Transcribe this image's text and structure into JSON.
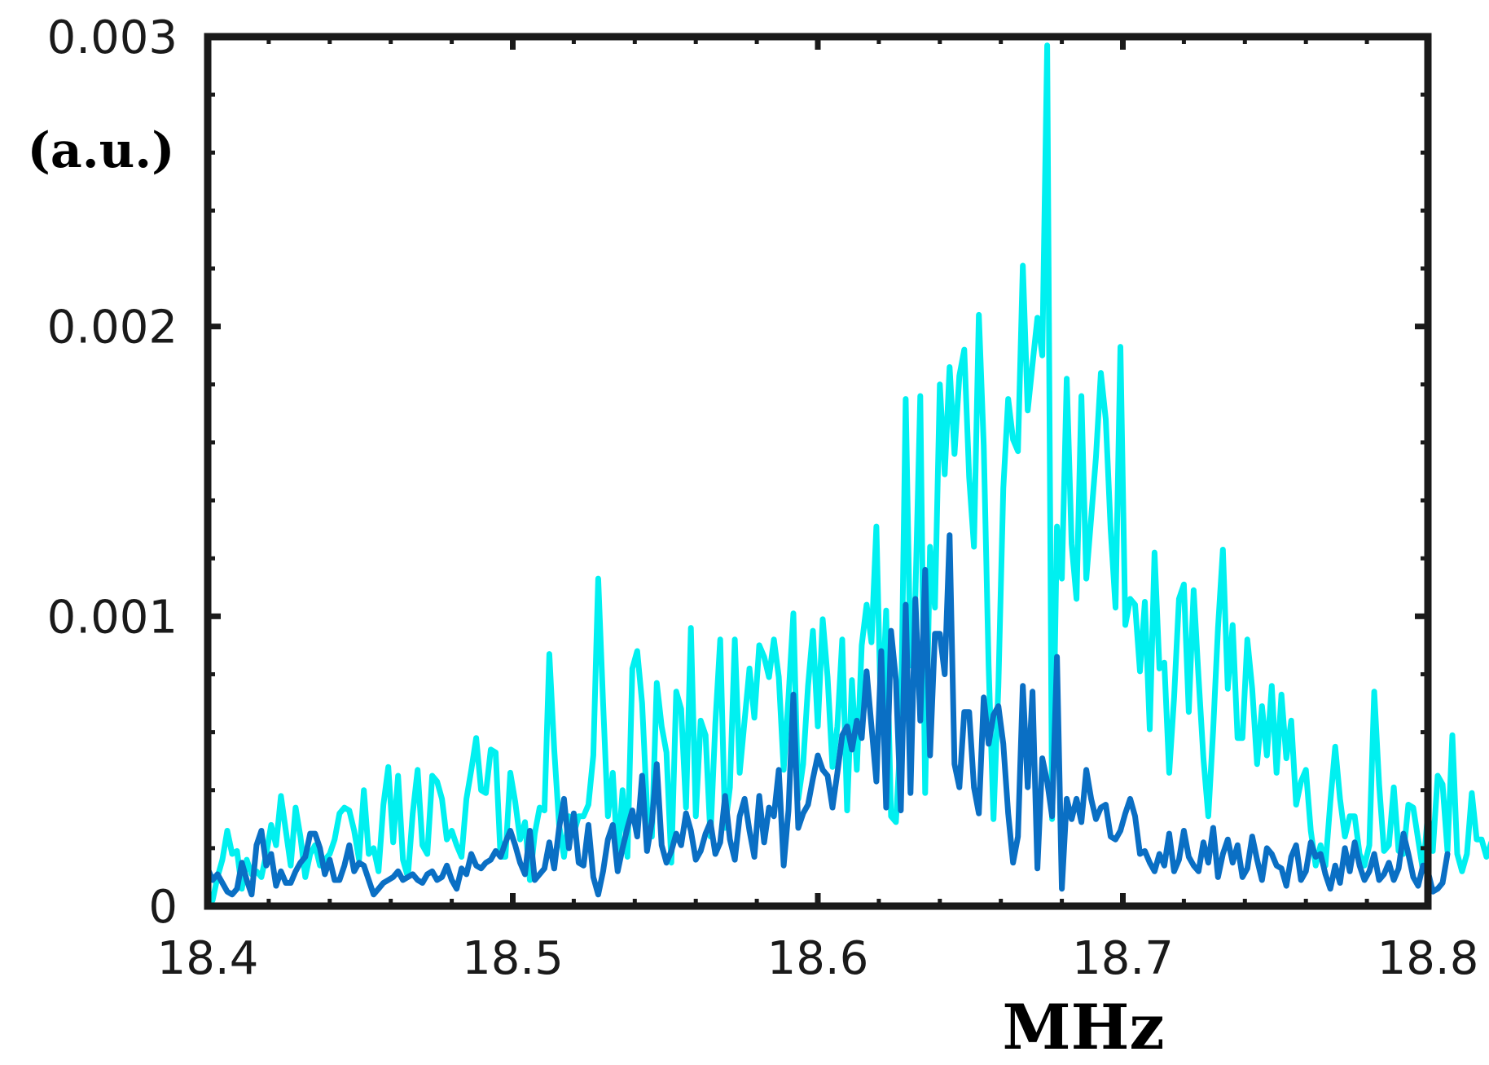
{
  "chart_data": {
    "type": "line",
    "title": "",
    "xlabel": "MHz",
    "ylabel": "(a.u.)",
    "xlim": [
      18.4,
      18.8
    ],
    "ylim": [
      0,
      0.003
    ],
    "xticks": [
      18.4,
      18.5,
      18.6,
      18.7,
      18.8
    ],
    "xtick_labels": [
      "18.4",
      "18.5",
      "18.6",
      "18.7",
      "18.8"
    ],
    "yticks": [
      0,
      0.001,
      0.002,
      0.003
    ],
    "ytick_labels": [
      "0",
      "0.001",
      "0.002",
      "0.003"
    ],
    "grid": false,
    "legend": "none",
    "x": {
      "start": 18.4,
      "step": 0.0016,
      "count": 251
    },
    "series": [
      {
        "color": "#00f0f0",
        "values": [
          5e-05,
          2e-05,
          0.0001,
          0.00016,
          0.00026,
          0.00018,
          0.00019,
          6e-05,
          0.00016,
          0.00011,
          0.00012,
          0.0001,
          0.00018,
          0.00028,
          0.00021,
          0.00038,
          0.00026,
          0.00014,
          0.00034,
          0.00024,
          0.0001,
          0.00018,
          0.00021,
          0.00014,
          0.00016,
          0.00018,
          0.00023,
          0.00032,
          0.00034,
          0.00033,
          0.00026,
          0.00016,
          0.0004,
          0.00018,
          0.0002,
          0.00012,
          0.00035,
          0.00048,
          0.00022,
          0.00045,
          0.00016,
          0.0001,
          0.00032,
          0.00047,
          0.00021,
          0.00018,
          0.00045,
          0.00043,
          0.00037,
          0.00023,
          0.00026,
          0.00021,
          0.00017,
          0.00037,
          0.00047,
          0.00058,
          0.0004,
          0.00039,
          0.00054,
          0.00053,
          0.00017,
          0.00017,
          0.00046,
          0.00036,
          0.00023,
          0.00029,
          9e-05,
          0.00025,
          0.00034,
          0.00033,
          0.00087,
          0.00054,
          0.00028,
          0.00017,
          0.00031,
          0.00025,
          0.00031,
          0.00031,
          0.00035,
          0.00052,
          0.00113,
          0.0007,
          0.00031,
          0.00046,
          0.00016,
          0.0004,
          0.00017,
          0.00082,
          0.00088,
          0.0007,
          0.00034,
          0.00024,
          0.00077,
          0.00062,
          0.00053,
          0.00015,
          0.00074,
          0.00068,
          0.00034,
          0.00096,
          0.00031,
          0.00064,
          0.00059,
          0.00024,
          0.00063,
          0.00092,
          0.00027,
          0.00041,
          0.00092,
          0.00046,
          0.00064,
          0.00082,
          0.00065,
          0.0009,
          0.00086,
          0.00079,
          0.00092,
          0.00079,
          0.00047,
          0.00072,
          0.00101,
          0.00037,
          0.00049,
          0.00076,
          0.00095,
          0.00062,
          0.00099,
          0.00079,
          0.00048,
          0.00062,
          0.00092,
          0.00033,
          0.00078,
          0.00047,
          0.0009,
          0.00104,
          0.00091,
          0.00131,
          0.0006,
          0.00102,
          0.00031,
          0.00029,
          0.0006,
          0.00175,
          0.00083,
          0.00107,
          0.00176,
          0.00039,
          0.00124,
          0.00103,
          0.0018,
          0.00149,
          0.00186,
          0.00156,
          0.00183,
          0.00192,
          0.00148,
          0.00124,
          0.00204,
          0.00159,
          0.00083,
          0.0003,
          0.00076,
          0.00144,
          0.00175,
          0.00161,
          0.00157,
          0.00221,
          0.00171,
          0.00187,
          0.00203,
          0.0019,
          0.00297,
          0.0003,
          0.00131,
          0.00113,
          0.00182,
          0.00125,
          0.00106,
          0.00176,
          0.00113,
          0.00134,
          0.00155,
          0.00184,
          0.00168,
          0.0013,
          0.00103,
          0.00193,
          0.00097,
          0.00106,
          0.00104,
          0.00081,
          0.00105,
          0.00061,
          0.00122,
          0.00082,
          0.00084,
          0.00046,
          0.00072,
          0.00106,
          0.00111,
          0.00067,
          0.00109,
          0.00079,
          0.00051,
          0.00031,
          0.00061,
          0.00096,
          0.00123,
          0.00075,
          0.00097,
          0.00058,
          0.00058,
          0.00092,
          0.00075,
          0.00049,
          0.00069,
          0.00052,
          0.00076,
          0.00046,
          0.00073,
          0.00051,
          0.00064,
          0.00035,
          0.00043,
          0.00047,
          0.00026,
          0.00014,
          0.00021,
          0.00014,
          0.00036,
          0.00055,
          0.00037,
          0.00024,
          0.00031,
          0.00031,
          0.00018,
          0.00014,
          0.00021,
          0.00074,
          0.00042,
          0.00019,
          0.00021,
          0.00041,
          0.00019,
          0.00018,
          0.00035,
          0.00034,
          0.00023,
          0.00012,
          0.00032,
          0.00019,
          0.00045,
          0.00042,
          0.00019,
          0.00059,
          0.00018,
          0.00012,
          0.00018,
          0.00039,
          0.00023,
          0.00023,
          0.00017,
          0.00022
        ]
      },
      {
        "color": "#0a6fc4",
        "values": [
          0.00013,
          9e-05,
          0.00011,
          8e-05,
          5e-05,
          4e-05,
          6e-05,
          0.00015,
          9e-05,
          4e-05,
          0.00021,
          0.00026,
          0.00014,
          0.00018,
          7e-05,
          0.00012,
          8e-05,
          8e-05,
          0.00012,
          0.00015,
          0.00017,
          0.00025,
          0.00025,
          0.0002,
          0.00011,
          0.00016,
          9e-05,
          9e-05,
          0.00014,
          0.00021,
          0.00012,
          0.00015,
          0.00014,
          9e-05,
          4e-05,
          6e-05,
          8e-05,
          9e-05,
          0.0001,
          0.00012,
          9e-05,
          0.0001,
          0.00011,
          9e-05,
          8e-05,
          0.00011,
          0.00012,
          9e-05,
          0.0001,
          0.00014,
          9e-05,
          6e-05,
          0.00013,
          0.00011,
          0.00018,
          0.00014,
          0.00013,
          0.00015,
          0.00016,
          0.00019,
          0.00017,
          0.00022,
          0.00026,
          0.00021,
          0.00015,
          0.00011,
          0.00026,
          9e-05,
          0.00011,
          0.00013,
          0.00022,
          0.00013,
          0.00027,
          0.00037,
          0.0002,
          0.00032,
          0.00015,
          0.00014,
          0.00028,
          0.0001,
          4e-05,
          0.00012,
          0.00023,
          0.00028,
          0.00012,
          0.0002,
          0.00027,
          0.00033,
          0.00024,
          0.00045,
          0.00019,
          0.00029,
          0.00049,
          0.00021,
          0.00015,
          0.00019,
          0.00025,
          0.00021,
          0.00032,
          0.00026,
          0.00016,
          0.00019,
          0.00025,
          0.00029,
          0.00018,
          0.00022,
          0.00038,
          0.00023,
          0.00016,
          0.00031,
          0.00037,
          0.00026,
          0.00017,
          0.00038,
          0.00022,
          0.00034,
          0.00031,
          0.00047,
          0.00014,
          0.00033,
          0.00073,
          0.00027,
          0.00032,
          0.00035,
          0.00044,
          0.00052,
          0.00047,
          0.00045,
          0.00034,
          0.00046,
          0.00059,
          0.00062,
          0.00054,
          0.00064,
          0.00058,
          0.00081,
          0.00062,
          0.00043,
          0.00088,
          0.00034,
          0.00095,
          0.00078,
          0.00033,
          0.00104,
          0.00039,
          0.00106,
          0.00064,
          0.00116,
          0.00052,
          0.00094,
          0.00094,
          0.0008,
          0.00128,
          0.00049,
          0.00041,
          0.00067,
          0.00067,
          0.00041,
          0.00032,
          0.00072,
          0.00056,
          0.00066,
          0.00069,
          0.00056,
          0.00032,
          0.00015,
          0.00024,
          0.00076,
          0.00041,
          0.00074,
          0.00013,
          0.00051,
          0.00043,
          0.00031,
          0.00086,
          6e-05,
          0.00037,
          0.0003,
          0.00037,
          0.00029,
          0.00047,
          0.00037,
          0.0003,
          0.00034,
          0.00035,
          0.00024,
          0.00023,
          0.00026,
          0.00032,
          0.00037,
          0.00031,
          0.00018,
          0.00019,
          0.00015,
          0.00012,
          0.00018,
          0.00014,
          0.00025,
          0.00012,
          0.00016,
          0.00026,
          0.00017,
          0.00014,
          0.00012,
          0.00022,
          0.00015,
          0.00027,
          0.0001,
          0.00018,
          0.00023,
          0.00015,
          0.00021,
          0.0001,
          0.00013,
          0.00024,
          0.00016,
          9e-05,
          0.0002,
          0.00018,
          0.00014,
          0.00013,
          7e-05,
          0.00017,
          0.00021,
          9e-05,
          0.00012,
          0.00022,
          0.00017,
          0.00018,
          0.00011,
          6e-05,
          0.00014,
          8e-05,
          0.0002,
          0.00012,
          0.00022,
          0.00014,
          9e-05,
          0.00012,
          0.00018,
          9e-05,
          0.00011,
          0.00015,
          9e-05,
          0.00013,
          0.00025,
          0.00018,
          0.0001,
          7e-05,
          0.00014,
          0.00012,
          5e-05,
          6e-05,
          8e-05,
          0.00018
        ]
      }
    ]
  }
}
